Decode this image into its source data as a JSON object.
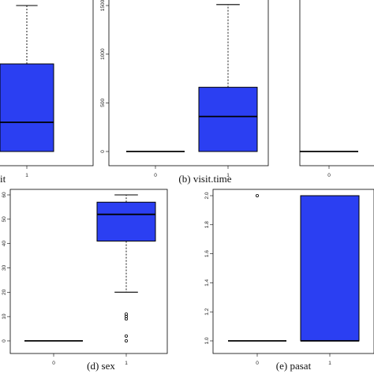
{
  "colors": {
    "box_fill": "#2b3ff2",
    "line": "#000000",
    "frame": "#000000"
  },
  "chart_data": [
    {
      "type": "boxplot",
      "caption": "it",
      "categories": [
        "1"
      ],
      "ylim": [
        0,
        1500
      ],
      "y_ticks": [],
      "boxes": [
        {
          "category": "1",
          "whisker_low": 0,
          "q1": 0,
          "median": 300,
          "q3": 900,
          "whisker_high": 1500,
          "outliers": []
        }
      ]
    },
    {
      "type": "boxplot",
      "caption": "(b) visit.time",
      "categories": [
        "0",
        "1"
      ],
      "ylim": [
        0,
        1500
      ],
      "y_ticks": [
        "0",
        "500",
        "1000",
        "1500"
      ],
      "boxes": [
        {
          "category": "0",
          "whisker_low": 0,
          "q1": 0,
          "median": 0,
          "q3": 0,
          "whisker_high": 0,
          "outliers": []
        },
        {
          "category": "1",
          "whisker_low": 0,
          "q1": 0,
          "median": 360,
          "q3": 660,
          "whisker_high": 1510,
          "outliers": []
        }
      ]
    },
    {
      "type": "boxplot",
      "caption": "",
      "categories": [
        "0"
      ],
      "ylim": [
        1,
        2
      ],
      "y_ticks": [],
      "boxes": [
        {
          "category": "0",
          "whisker_low": 1,
          "q1": 1,
          "median": 1,
          "q3": 1,
          "whisker_high": 1,
          "outliers": []
        }
      ]
    },
    {
      "type": "boxplot",
      "caption": "(d) sex",
      "categories": [
        "0",
        "1"
      ],
      "ylim": [
        0,
        60
      ],
      "y_ticks": [
        "0",
        "10",
        "20",
        "30",
        "40",
        "50",
        "60"
      ],
      "boxes": [
        {
          "category": "0",
          "whisker_low": 0,
          "q1": 0,
          "median": 0,
          "q3": 0,
          "whisker_high": 0,
          "outliers": []
        },
        {
          "category": "1",
          "whisker_low": 20,
          "q1": 41,
          "median": 52,
          "q3": 57,
          "whisker_high": 60,
          "outliers": [
            0,
            2,
            9,
            10,
            11
          ]
        }
      ]
    },
    {
      "type": "boxplot",
      "caption": "(e) pasat",
      "categories": [
        "0",
        "1"
      ],
      "ylim": [
        1,
        2
      ],
      "y_ticks": [
        "1.0",
        "1.2",
        "1.4",
        "1.6",
        "1.8",
        "2.0"
      ],
      "boxes": [
        {
          "category": "0",
          "whisker_low": 1,
          "q1": 1,
          "median": 1,
          "q3": 1,
          "whisker_high": 1,
          "outliers": [
            2
          ]
        },
        {
          "category": "1",
          "whisker_low": 1,
          "q1": 1,
          "median": 1,
          "q3": 2,
          "whisker_high": 2,
          "outliers": []
        }
      ]
    }
  ]
}
